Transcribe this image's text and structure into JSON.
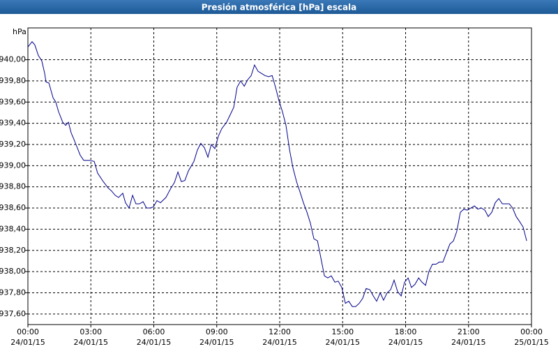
{
  "chart_data": {
    "type": "line",
    "title": "Presión atmosférica [hPa] escala",
    "ylabel": "hPa",
    "xlim": [
      0,
      24
    ],
    "xticks": [
      {
        "value": 0,
        "label": "00:00",
        "date": "24/01/15"
      },
      {
        "value": 3,
        "label": "03:00",
        "date": "24/01/15"
      },
      {
        "value": 6,
        "label": "06:00",
        "date": "24/01/15"
      },
      {
        "value": 9,
        "label": "09:00",
        "date": "24/01/15"
      },
      {
        "value": 12,
        "label": "12:00",
        "date": "24/01/15"
      },
      {
        "value": 15,
        "label": "15:00",
        "date": "24/01/15"
      },
      {
        "value": 18,
        "label": "18:00",
        "date": "24/01/15"
      },
      {
        "value": 21,
        "label": "21:00",
        "date": "24/01/15"
      },
      {
        "value": 24,
        "label": "00:00",
        "date": "25/01/15"
      }
    ],
    "ylim": [
      937.5,
      940.3
    ],
    "yticks": [
      {
        "value": 937.6,
        "label": "937,60"
      },
      {
        "value": 937.8,
        "label": "937,80"
      },
      {
        "value": 938.0,
        "label": "938,00"
      },
      {
        "value": 938.2,
        "label": "938,20"
      },
      {
        "value": 938.4,
        "label": "938,40"
      },
      {
        "value": 938.6,
        "label": "938,60"
      },
      {
        "value": 938.8,
        "label": "938,80"
      },
      {
        "value": 939.0,
        "label": "939,00"
      },
      {
        "value": 939.2,
        "label": "939,20"
      },
      {
        "value": 939.4,
        "label": "939,40"
      },
      {
        "value": 939.6,
        "label": "939,60"
      },
      {
        "value": 939.8,
        "label": "939,80"
      },
      {
        "value": 940.0,
        "label": "940,00"
      }
    ],
    "grid": true,
    "series": [
      {
        "color": "#00008b",
        "x": [
          0,
          0.2,
          0.33,
          0.5,
          0.66,
          0.8,
          0.86,
          1.0,
          1.2,
          1.33,
          1.46,
          1.66,
          1.8,
          1.93,
          2.06,
          2.19,
          2.33,
          2.49,
          2.66,
          2.93,
          3.16,
          3.32,
          3.59,
          3.82,
          3.99,
          4.16,
          4.32,
          4.52,
          4.65,
          4.82,
          4.99,
          5.15,
          5.32,
          5.49,
          5.65,
          5.82,
          5.98,
          6.15,
          6.32,
          6.58,
          6.82,
          6.98,
          7.15,
          7.31,
          7.48,
          7.65,
          7.91,
          8.08,
          8.24,
          8.41,
          8.58,
          8.74,
          8.91,
          9.08,
          9.24,
          9.47,
          9.64,
          9.81,
          9.97,
          10.14,
          10.31,
          10.47,
          10.64,
          10.8,
          10.97,
          11.14,
          11.3,
          11.47,
          11.64,
          11.8,
          11.97,
          12.13,
          12.3,
          12.47,
          12.63,
          12.8,
          12.97,
          13.13,
          13.3,
          13.46,
          13.63,
          13.8,
          13.96,
          14.13,
          14.29,
          14.46,
          14.63,
          14.79,
          14.96,
          15.13,
          15.29,
          15.46,
          15.62,
          15.79,
          15.96,
          16.12,
          16.29,
          16.46,
          16.62,
          16.79,
          16.95,
          17.12,
          17.29,
          17.45,
          17.62,
          17.79,
          17.95,
          18.12,
          18.28,
          18.45,
          18.62,
          18.78,
          18.95,
          19.11,
          19.28,
          19.45,
          19.61,
          19.78,
          19.95,
          20.11,
          20.28,
          20.44,
          20.61,
          20.78,
          20.94,
          21.11,
          21.28,
          21.44,
          21.61,
          21.78,
          21.94,
          22.11,
          22.27,
          22.44,
          22.61,
          22.77,
          22.94,
          23.1,
          23.27,
          23.44,
          23.6,
          23.77
        ],
        "values": [
          940.12,
          940.17,
          940.14,
          940.04,
          939.99,
          939.87,
          939.79,
          939.78,
          939.64,
          939.6,
          939.51,
          939.41,
          939.38,
          939.41,
          939.31,
          939.25,
          939.18,
          939.1,
          939.05,
          939.05,
          939.04,
          938.93,
          938.85,
          938.79,
          938.76,
          938.72,
          938.7,
          938.74,
          938.65,
          938.6,
          938.72,
          938.64,
          938.64,
          938.66,
          938.6,
          938.6,
          938.61,
          938.67,
          938.65,
          938.7,
          938.79,
          938.84,
          938.94,
          938.85,
          938.86,
          938.95,
          939.04,
          939.15,
          939.21,
          939.17,
          939.08,
          939.2,
          939.16,
          939.28,
          939.35,
          939.41,
          939.48,
          939.55,
          939.74,
          939.8,
          939.75,
          939.81,
          939.85,
          939.95,
          939.89,
          939.87,
          939.85,
          939.84,
          939.85,
          939.74,
          939.61,
          939.51,
          939.38,
          939.15,
          938.98,
          938.85,
          938.75,
          938.65,
          938.56,
          938.46,
          938.31,
          938.29,
          938.13,
          937.96,
          937.94,
          937.96,
          937.9,
          937.91,
          937.85,
          937.7,
          937.72,
          937.67,
          937.67,
          937.7,
          937.75,
          937.84,
          937.83,
          937.77,
          937.72,
          937.8,
          937.73,
          937.8,
          937.83,
          937.92,
          937.81,
          937.77,
          937.9,
          937.94,
          937.85,
          937.88,
          937.94,
          937.9,
          937.87,
          938.0,
          938.07,
          938.07,
          938.09,
          938.09,
          938.18,
          938.26,
          938.29,
          938.38,
          938.56,
          938.59,
          938.58,
          938.6,
          938.62,
          938.59,
          938.6,
          938.58,
          938.52,
          938.56,
          938.65,
          938.69,
          938.64,
          938.64,
          938.64,
          938.6,
          938.52,
          938.47,
          938.42,
          938.29
        ]
      }
    ]
  }
}
